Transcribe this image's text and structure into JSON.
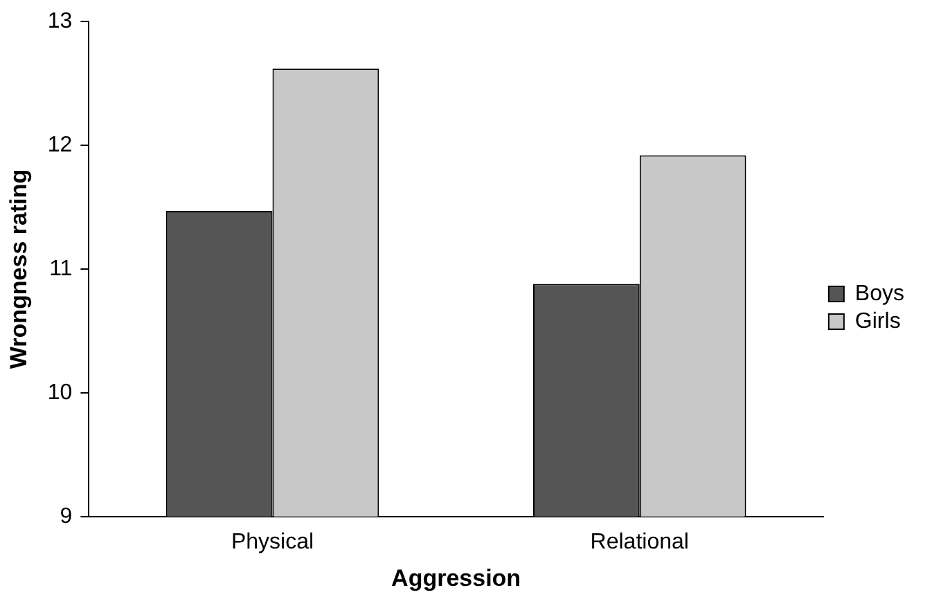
{
  "chart_data": {
    "type": "bar",
    "xlabel": "Aggression",
    "ylabel": "Wrongness rating",
    "categories": [
      "Physical",
      "Relational"
    ],
    "series": [
      {
        "name": "Boys",
        "color": "#555555",
        "values": [
          11.47,
          10.88
        ]
      },
      {
        "name": "Girls",
        "color": "#c8c8c8",
        "values": [
          12.62,
          11.92
        ]
      }
    ],
    "ylim": [
      9,
      13
    ],
    "yticks": [
      9,
      10,
      11,
      12,
      13
    ],
    "grid": false,
    "legend": "right"
  }
}
